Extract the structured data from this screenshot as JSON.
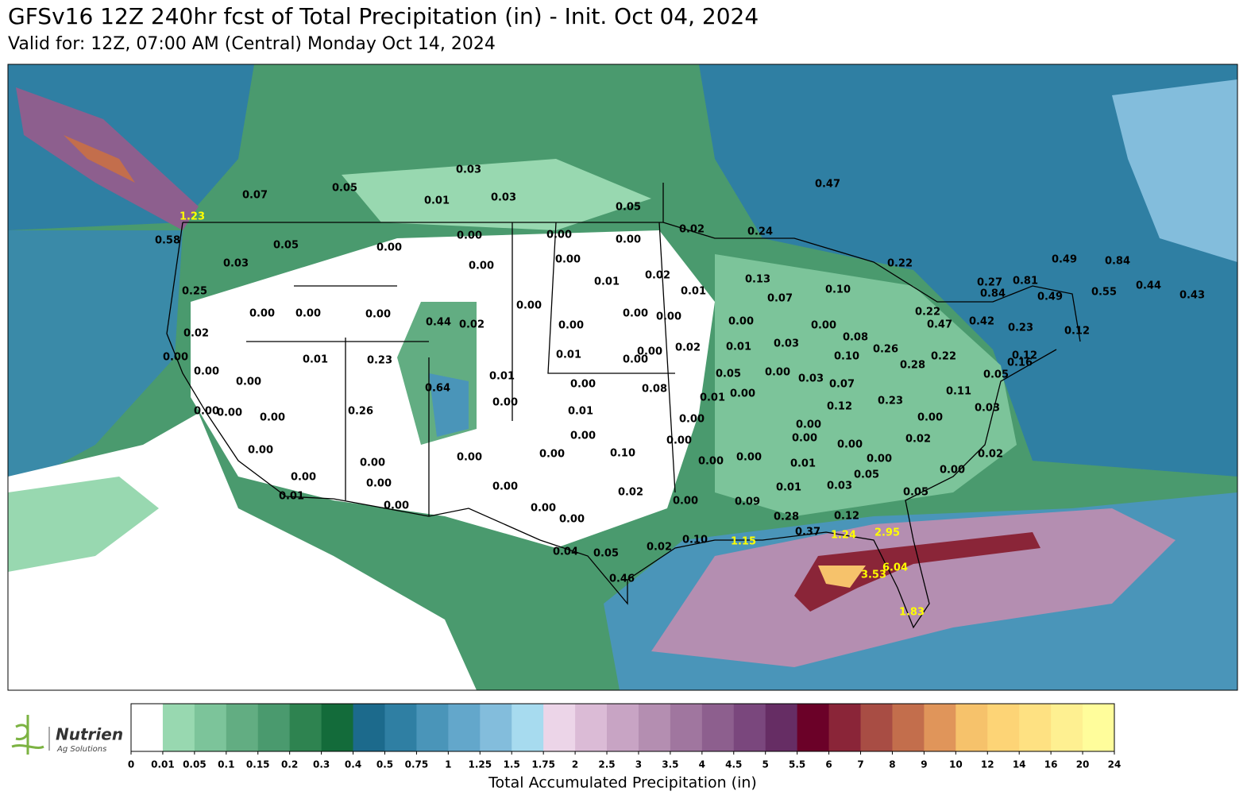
{
  "header": {
    "title": "GFSv16 12Z 240hr fcst of Total Precipitation (in) - Init. Oct 04, 2024",
    "subtitle": "Valid for: 12Z, 07:00 AM (Central) Monday Oct 14, 2024"
  },
  "map": {
    "point_labels": [
      "0.03",
      "0.05",
      "0.07",
      "0.01",
      "0.03",
      "0.05",
      "0.47",
      "0.58",
      "0.00",
      "0.00",
      "0.00",
      "0.02",
      "0.24",
      "0.05",
      "0.00",
      "0.03",
      "0.00",
      "0.00",
      "0.22",
      "0.49",
      "0.84",
      "0.02",
      "0.01",
      "0.13",
      "0.27",
      "0.81",
      "0.44",
      "0.25",
      "0.01",
      "0.10",
      "0.84",
      "0.49",
      "0.55",
      "0.43",
      "0.07",
      "0.00",
      "0.00",
      "0.00",
      "0.00",
      "0.00",
      "0.00",
      "0.22",
      "0.44",
      "0.02",
      "0.00",
      "0.00",
      "0.00",
      "0.47",
      "0.42",
      "0.23",
      "0.12",
      "0.02",
      "0.08",
      "0.03",
      "0.02",
      "0.01",
      "0.00",
      "0.26",
      "0.00",
      "0.01",
      "0.23",
      "0.01",
      "0.00",
      "0.10",
      "0.22",
      "0.12",
      "0.28",
      "0.16",
      "0.00",
      "0.01",
      "0.05",
      "0.00",
      "0.03",
      "0.05",
      "0.00",
      "0.07",
      "0.00",
      "0.08",
      "0.64",
      "0.11",
      "0.01",
      "0.00",
      "0.00",
      "0.12",
      "0.23",
      "0.03",
      "0.00",
      "0.00",
      "0.00",
      "0.26",
      "0.01",
      "0.00",
      "0.00",
      "0.00",
      "0.00",
      "0.00",
      "0.02",
      "0.00",
      "0.00",
      "0.00",
      "0.00",
      "0.00",
      "0.10",
      "0.02",
      "0.00",
      "0.00",
      "0.00",
      "0.01",
      "0.00",
      "0.00",
      "0.05",
      "0.00",
      "0.00",
      "0.00",
      "0.01",
      "0.03",
      "0.01",
      "0.02",
      "0.05",
      "0.00",
      "0.09",
      "0.00",
      "0.00",
      "0.00",
      "0.12",
      "0.28",
      "0.37",
      "0.10",
      "0.02",
      "0.04",
      "0.05",
      "0.46"
    ],
    "heavy_labels": [
      "1.23",
      "1.24",
      "2.95",
      "1.15",
      "6.04",
      "3.53",
      "1.83"
    ],
    "label_color": "#000000",
    "heavy_label_color": "#ffff00"
  },
  "colorbar": {
    "ticks": [
      0,
      0.01,
      0.05,
      0.1,
      0.15,
      0.2,
      0.3,
      0.4,
      0.5,
      0.75,
      1,
      1.25,
      1.5,
      1.75,
      2,
      2.5,
      3,
      3.5,
      4,
      4.5,
      5,
      5.5,
      6,
      7,
      8,
      9,
      10,
      12,
      14,
      16,
      20,
      24
    ],
    "colors": [
      "#ffffff",
      "#98d8b0",
      "#7cc49a",
      "#62ad82",
      "#4a9a6e",
      "#2e8350",
      "#136b3a",
      "#1c6a8c",
      "#2f7fa3",
      "#4a95b9",
      "#63a7cb",
      "#83bddc",
      "#a7dbef",
      "#ecd5e8",
      "#dbbbd6",
      "#c8a4c4",
      "#b48eb1",
      "#a0769f",
      "#8d5f8e",
      "#7a477d",
      "#662d64",
      "#6b0128",
      "#8a2538",
      "#a84d44",
      "#c36e4c",
      "#e0955a",
      "#f6c26b",
      "#fdd476",
      "#fee182",
      "#fef091",
      "#fffd9b"
    ],
    "label": "Total Accumulated Precipitation (in)"
  },
  "logo": {
    "name": "Nutrien",
    "tagline": "Ag Solutions"
  }
}
